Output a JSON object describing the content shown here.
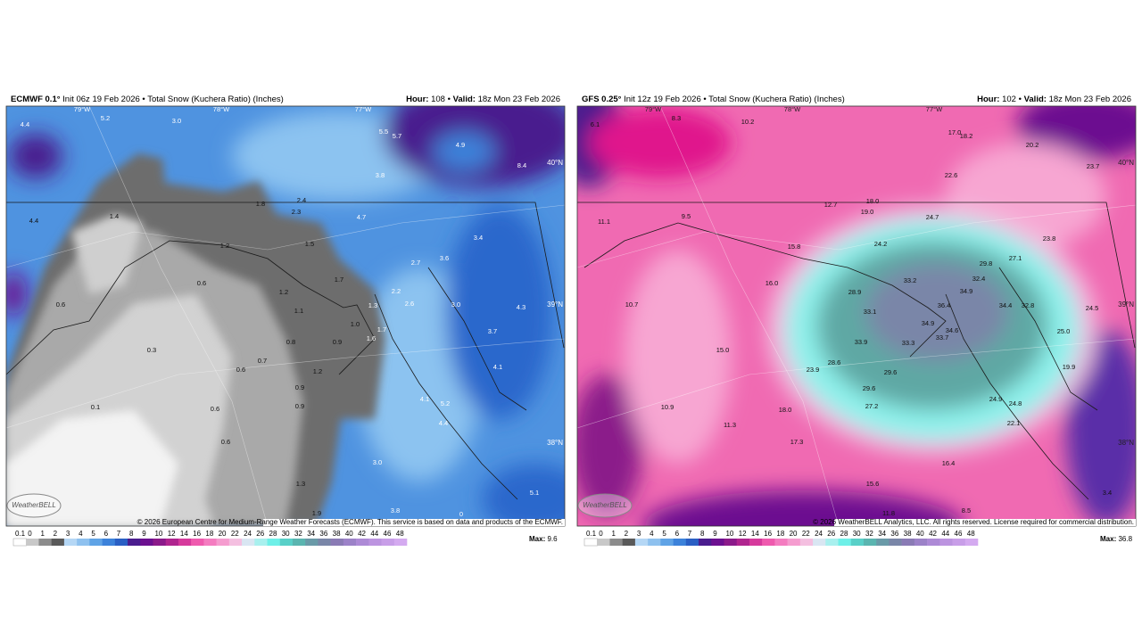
{
  "panels": [
    {
      "model": "ECMWF 0.1°",
      "description": "Init 06z 19 Feb 2026 • Total Snow (Kuchera Ratio) (Inches)",
      "hour_label": "Hour:",
      "hour": "108 •",
      "valid_label": "Valid:",
      "valid": "18z Mon 23 Feb 2026",
      "lon_labels": [
        "79°W",
        "78°W",
        "77°W"
      ],
      "lat_labels": [
        "40°N",
        "39°N",
        "38°N"
      ],
      "labels": [
        "4.4",
        "5.2",
        "3.0",
        "5.5",
        "5.7",
        "4.9",
        "8.4",
        "3.8",
        "1.8",
        "2.4",
        "2.3",
        "4.7",
        "4.4",
        "1.4",
        "1.2",
        "1.5",
        "3.4",
        "2.7",
        "3.6",
        "0.6",
        "1.7",
        "2.2",
        "1.2",
        "0.6",
        "2.6",
        "1.1",
        "1.3",
        "3.0",
        "4.3",
        "1.0",
        "1.7",
        "1.6",
        "3.7",
        "0.8",
        "0.9",
        "0.3",
        "0.7",
        "0.6",
        "1.2",
        "4.1",
        "0.9",
        "4.1",
        "5.2",
        "0.1",
        "0.6",
        "0.9",
        "4.4",
        "0.6",
        "3.0",
        "1.3",
        "5.1",
        "1.9",
        "3.8",
        "0"
      ],
      "copyright": "© 2026 European Centre for Medium-Range Weather Forecasts (ECMWF). This service is based on data and products of the ECMWF.",
      "logo": "WeatherBELL",
      "max_label": "Max:",
      "max": "9.6"
    },
    {
      "model": "GFS 0.25°",
      "description": "Init 12z 19 Feb 2026 • Total Snow (Kuchera Ratio) (Inches)",
      "hour_label": "Hour:",
      "hour": "102 •",
      "valid_label": "Valid:",
      "valid": "18z Mon 23 Feb 2026",
      "lon_labels": [
        "79°W",
        "78°W",
        "77°W"
      ],
      "lat_labels": [
        "40°N",
        "39°N",
        "38°N"
      ],
      "labels": [
        "6.1",
        "8.3",
        "10.2",
        "17.0",
        "18.2",
        "20.2",
        "23.7",
        "22.6",
        "18.0",
        "12.7",
        "19.0",
        "24.7",
        "11.1",
        "9.5",
        "24.2",
        "23.8",
        "15.8",
        "27.1",
        "29.8",
        "33.2",
        "32.4",
        "16.0",
        "28.9",
        "34.9",
        "10.7",
        "36.4",
        "34.4",
        "32.8",
        "24.5",
        "33.1",
        "34.9",
        "34.6",
        "33.7",
        "25.0",
        "33.9",
        "33.3",
        "15.0",
        "28.6",
        "23.9",
        "29.6",
        "19.9",
        "29.6",
        "27.2",
        "24.9",
        "24.8",
        "10.9",
        "18.0",
        "11.3",
        "22.1",
        "17.3",
        "16.4",
        "15.6",
        "3.4",
        "11.8",
        "8.5"
      ],
      "copyright": "© 2026 WeatherBELL Analytics, LLC. All rights reserved. License required for commercial distribution.",
      "logo": "WeatherBELL",
      "max_label": "Max:",
      "max": "36.8"
    }
  ],
  "legend": {
    "labels": [
      "0.1",
      "0",
      "1",
      "2",
      "3",
      "4",
      "5",
      "6",
      "7",
      "8",
      "9",
      "10",
      "12",
      "14",
      "16",
      "18",
      "20",
      "22",
      "24",
      "26",
      "28",
      "30",
      "32",
      "34",
      "36",
      "38",
      "40",
      "42",
      "44",
      "46",
      "48"
    ],
    "colors": [
      "#ffffff",
      "#c8c8c8",
      "#8c8c8c",
      "#5a5a5a",
      "#b5d7f5",
      "#8ec1ef",
      "#5fa3e6",
      "#3c82da",
      "#2a5fc4",
      "#4a1d8e",
      "#6c1090",
      "#8b1a8a",
      "#b0258f",
      "#d63a9c",
      "#ef5aae",
      "#f47cc0",
      "#f59ccf",
      "#f4bfe0",
      "#d9e6f2",
      "#a8f0ee",
      "#6ef0e8",
      "#59d0c8",
      "#5ab5b0",
      "#6a9aa8",
      "#7a86a8",
      "#8a7bb5",
      "#9c82c8",
      "#ad8ad6",
      "#bc94e0",
      "#c89ee8",
      "#d4aaf0"
    ]
  }
}
